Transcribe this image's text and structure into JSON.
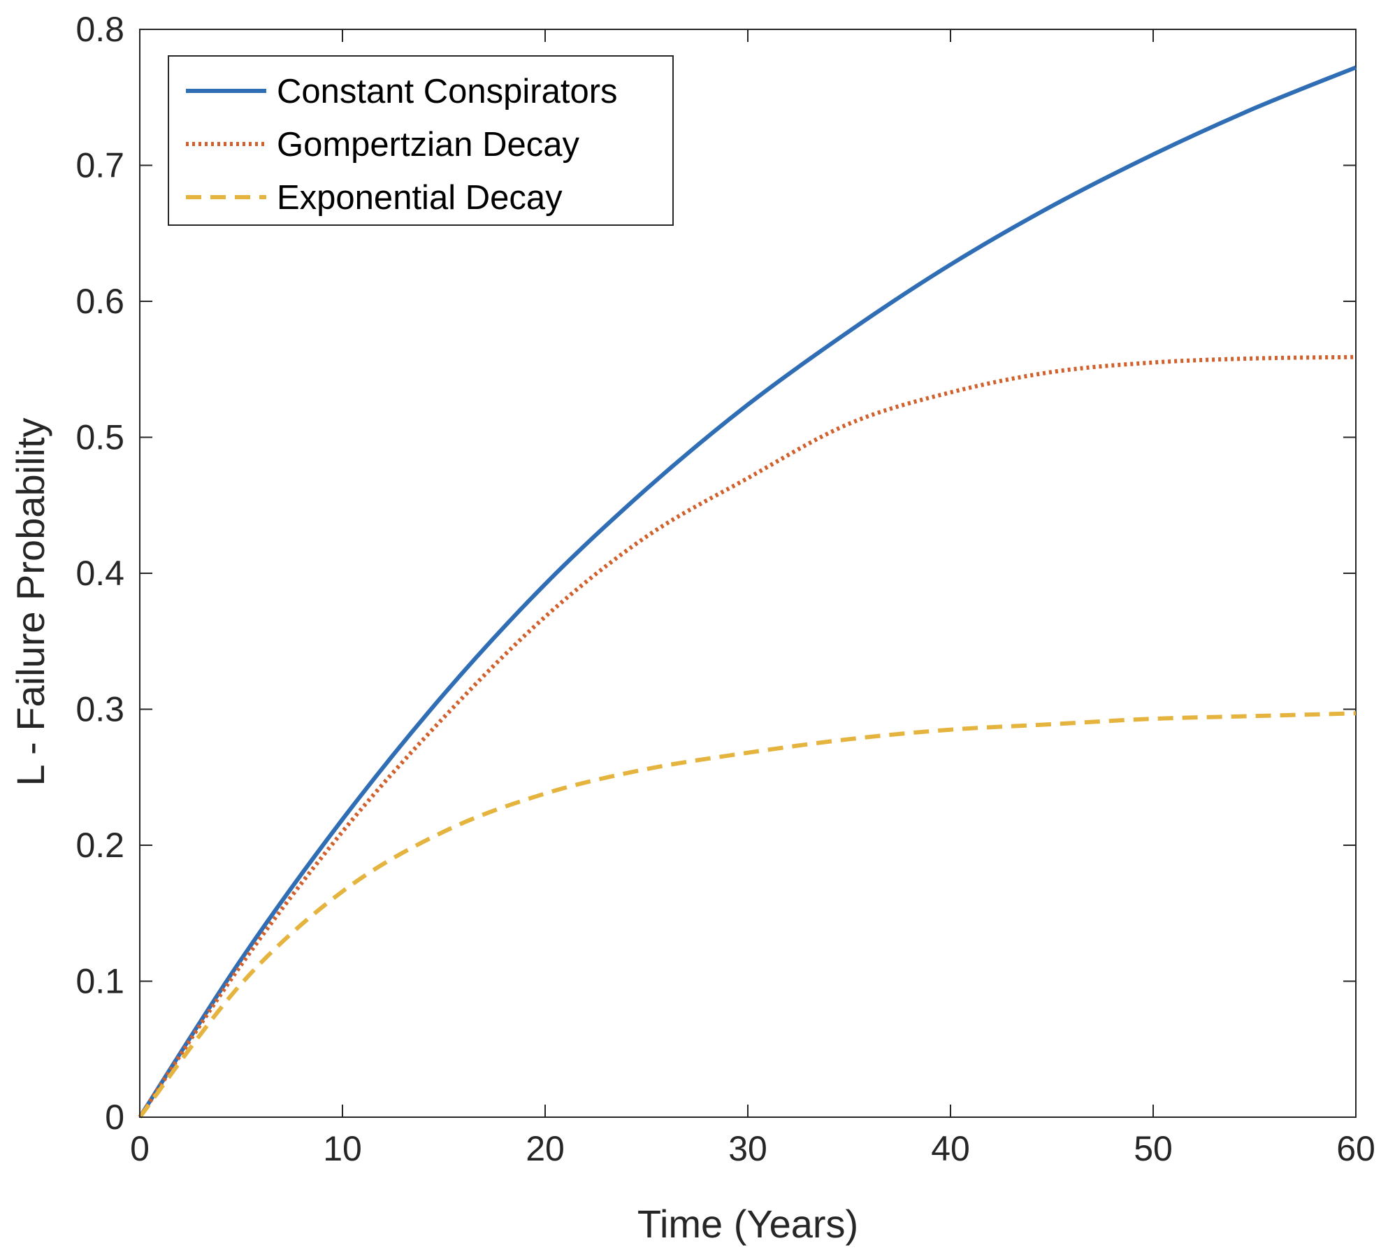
{
  "chart_data": {
    "type": "line",
    "title": "",
    "xlabel": "Time (Years)",
    "ylabel": "L - Failure Probability",
    "xlim": [
      0,
      60
    ],
    "ylim": [
      0,
      0.8
    ],
    "xticks": [
      0,
      10,
      20,
      30,
      40,
      50,
      60
    ],
    "xtick_labels": [
      "0",
      "10",
      "20",
      "30",
      "40",
      "50",
      "60"
    ],
    "yticks": [
      0,
      0.1,
      0.2,
      0.3,
      0.4,
      0.5,
      0.6,
      0.7,
      0.8
    ],
    "ytick_labels": [
      "0",
      "0.1",
      "0.2",
      "0.3",
      "0.4",
      "0.5",
      "0.6",
      "0.7",
      "0.8"
    ],
    "grid": false,
    "legend_position": "top-left",
    "x": [
      0,
      5,
      10,
      15,
      20,
      25,
      30,
      35,
      40,
      45,
      50,
      55,
      60
    ],
    "series": [
      {
        "name": "Constant Conspirators",
        "color": "#2f6db5",
        "style": "solid",
        "values": [
          0,
          0.116,
          0.219,
          0.311,
          0.392,
          0.462,
          0.524,
          0.578,
          0.627,
          0.67,
          0.708,
          0.742,
          0.772
        ]
      },
      {
        "name": "Gompertzian Decay",
        "color": "#d1612c",
        "style": "dotted",
        "values": [
          0,
          0.112,
          0.21,
          0.294,
          0.368,
          0.427,
          0.47,
          0.51,
          0.533,
          0.548,
          0.555,
          0.558,
          0.559
        ]
      },
      {
        "name": "Exponential Decay",
        "color": "#e5b43e",
        "style": "dashed",
        "values": [
          0,
          0.098,
          0.166,
          0.21,
          0.238,
          0.256,
          0.268,
          0.278,
          0.285,
          0.289,
          0.293,
          0.295,
          0.297
        ]
      }
    ]
  }
}
